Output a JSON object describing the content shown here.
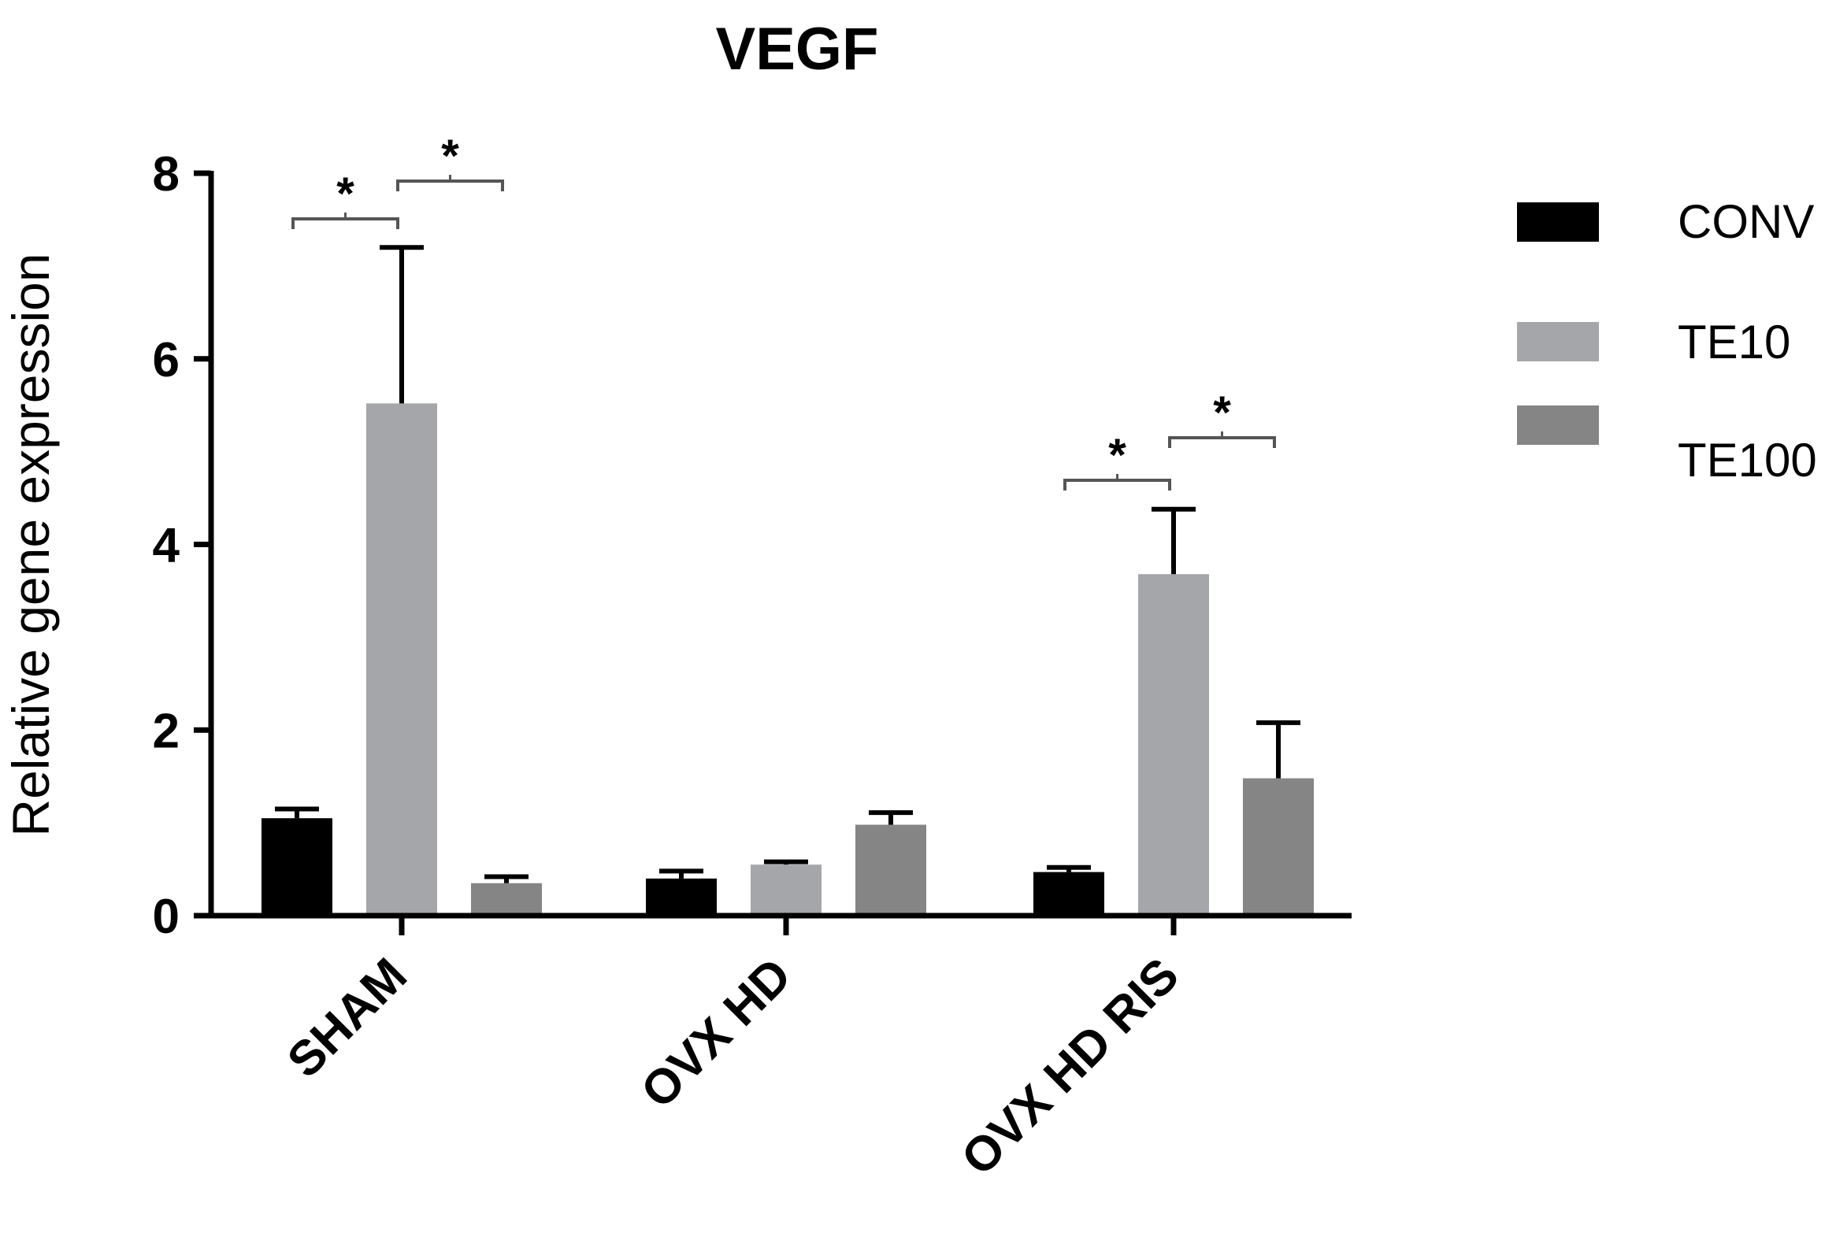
{
  "chart_data": {
    "type": "bar",
    "title": "VEGF",
    "xlabel": "",
    "ylabel": "Relative gene expression",
    "ylim": [
      0,
      8
    ],
    "yticks": [
      "0",
      "2",
      "4",
      "6",
      "8"
    ],
    "categories": [
      "SHAM",
      "OVX HD",
      "OVX HD RIS"
    ],
    "series": [
      {
        "name": "CONV",
        "color": "#000000",
        "values": [
          1.05,
          0.4,
          0.47
        ],
        "errors": [
          0.1,
          0.08,
          0.05
        ]
      },
      {
        "name": "TE10",
        "color": "#a5a6aa",
        "values": [
          5.52,
          0.55,
          3.68
        ],
        "errors": [
          1.68,
          0.03,
          0.7
        ]
      },
      {
        "name": "TE100",
        "color": "#858585",
        "values": [
          0.35,
          0.98,
          1.48
        ],
        "errors": [
          0.07,
          0.13,
          0.6
        ]
      }
    ],
    "legend": [
      "CONV",
      "TE10",
      "TE100"
    ],
    "legend_position": "right",
    "significance": [
      {
        "category": "SHAM",
        "from": "CONV",
        "to": "TE10",
        "label": "*"
      },
      {
        "category": "SHAM",
        "from": "TE10",
        "to": "TE100",
        "label": "*"
      },
      {
        "category": "OVX HD RIS",
        "from": "CONV",
        "to": "TE10",
        "label": "*"
      },
      {
        "category": "OVX HD RIS",
        "from": "TE10",
        "to": "TE100",
        "label": "*"
      }
    ]
  }
}
